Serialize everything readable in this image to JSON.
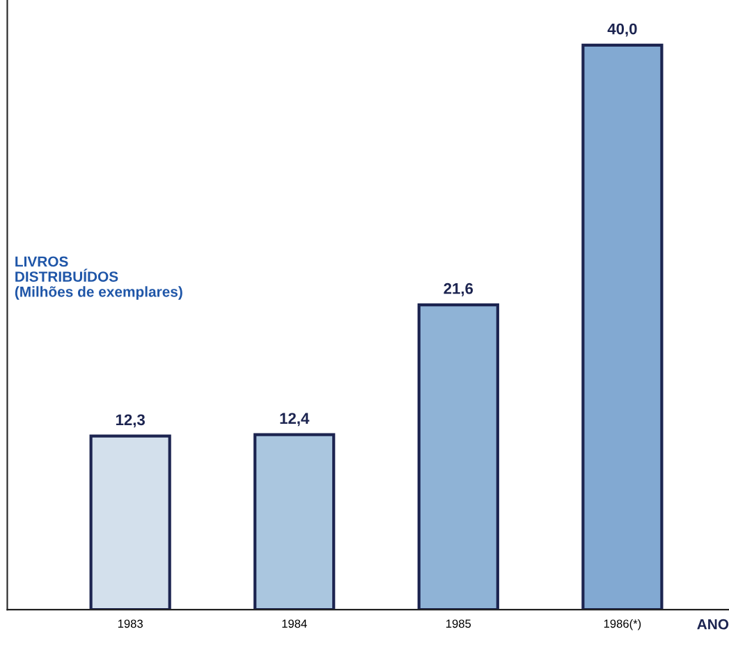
{
  "chart_data": {
    "type": "bar",
    "xlabel": "ANO",
    "ylabel": "LIVROS\nDISTRIBUÍDOS\n(Milhões de exemplares)",
    "categories": [
      "1983",
      "1984",
      "1985",
      "1986(*)"
    ],
    "values": [
      12.3,
      12.4,
      21.6,
      40.0
    ],
    "colors": [
      "#d3e0ec",
      "#aac6df",
      "#8fb3d6",
      "#82a9d2"
    ],
    "value_labels": [
      "12,3",
      "12,4",
      "21,6",
      "40,0"
    ],
    "grid": false
  }
}
